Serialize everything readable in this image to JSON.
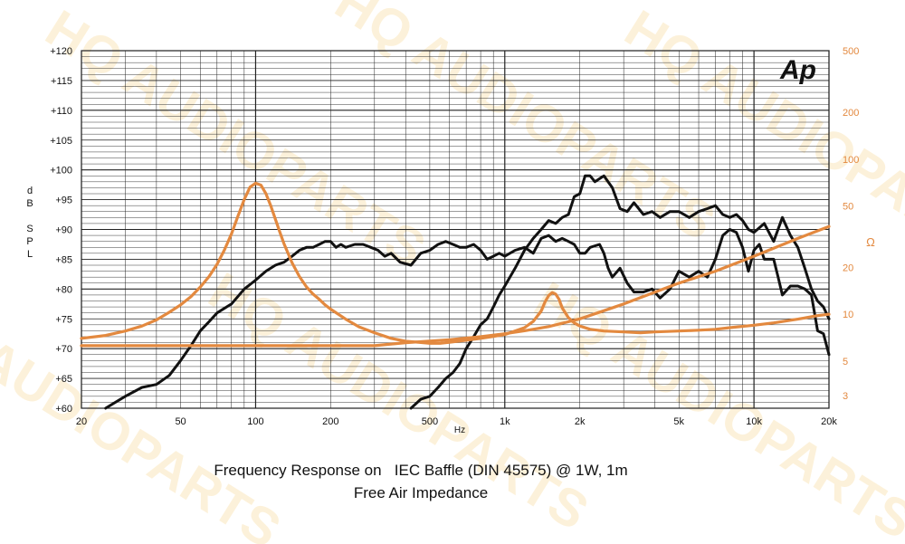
{
  "chart_data": {
    "type": "line",
    "x_scale": "log",
    "xlabel": "Hz",
    "xlim": [
      20,
      20000
    ],
    "x_ticks": [
      {
        "v": 20,
        "label": "20"
      },
      {
        "v": 50,
        "label": "50"
      },
      {
        "v": 100,
        "label": "100"
      },
      {
        "v": 200,
        "label": "200"
      },
      {
        "v": 500,
        "label": "500"
      },
      {
        "v": 1000,
        "label": "1k"
      },
      {
        "v": 2000,
        "label": "2k"
      },
      {
        "v": 5000,
        "label": "5k"
      },
      {
        "v": 10000,
        "label": "10k"
      },
      {
        "v": 20000,
        "label": "20k"
      }
    ],
    "ylabel_left": [
      "d",
      "B",
      "",
      "S",
      "P",
      "L"
    ],
    "ylim_left": [
      60,
      120
    ],
    "y_ticks_left": [
      "+60",
      "+65",
      "+70",
      "+75",
      "+80",
      "+85",
      "+90",
      "+95",
      "+100",
      "+105",
      "+110",
      "+115",
      "+120"
    ],
    "y_scale_right": "log",
    "ylabel_right": "Ω",
    "ylim_right": [
      2.48,
      500
    ],
    "y_ticks_right": [
      {
        "v": 3,
        "label": "3"
      },
      {
        "v": 5,
        "label": "5"
      },
      {
        "v": 10,
        "label": "10"
      },
      {
        "v": 20,
        "label": "20"
      },
      {
        "v": 50,
        "label": "50"
      },
      {
        "v": 100,
        "label": "100"
      },
      {
        "v": 200,
        "label": "200"
      },
      {
        "v": 500,
        "label": "500"
      }
    ],
    "grid": true,
    "logo_text": "Ap",
    "watermark_text": "HQ AUDIOPARTS",
    "series": [
      {
        "axis": "left",
        "color": "#111111",
        "points": [
          [
            25,
            60
          ],
          [
            30,
            62
          ],
          [
            35,
            63.5
          ],
          [
            40,
            64
          ],
          [
            45,
            65.5
          ],
          [
            50,
            68
          ],
          [
            55,
            70.5
          ],
          [
            60,
            73
          ],
          [
            65,
            74.5
          ],
          [
            70,
            76
          ],
          [
            80,
            77.5
          ],
          [
            90,
            80
          ],
          [
            100,
            81.5
          ],
          [
            110,
            83
          ],
          [
            120,
            84
          ],
          [
            130,
            84.5
          ],
          [
            140,
            85.5
          ],
          [
            150,
            86.5
          ],
          [
            160,
            87
          ],
          [
            170,
            87
          ],
          [
            180,
            87.5
          ],
          [
            190,
            88
          ],
          [
            200,
            88
          ],
          [
            210,
            87
          ],
          [
            220,
            87.5
          ],
          [
            230,
            87
          ],
          [
            250,
            87.5
          ],
          [
            270,
            87.5
          ],
          [
            290,
            87
          ],
          [
            310,
            86.5
          ],
          [
            330,
            85.5
          ],
          [
            350,
            86
          ],
          [
            380,
            84.5
          ],
          [
            420,
            84
          ],
          [
            460,
            86
          ],
          [
            500,
            86.5
          ],
          [
            540,
            87.5
          ],
          [
            580,
            88
          ],
          [
            620,
            87.5
          ],
          [
            660,
            87
          ],
          [
            700,
            87
          ],
          [
            750,
            87.5
          ],
          [
            800,
            86.5
          ],
          [
            850,
            85
          ],
          [
            900,
            85.5
          ],
          [
            950,
            86
          ],
          [
            1000,
            85.5
          ],
          [
            1100,
            86.5
          ],
          [
            1200,
            87
          ],
          [
            1300,
            86
          ],
          [
            1400,
            88.5
          ],
          [
            1500,
            89
          ],
          [
            1600,
            88
          ],
          [
            1700,
            88.5
          ],
          [
            1800,
            88
          ],
          [
            1900,
            87.5
          ],
          [
            2000,
            86
          ],
          [
            2100,
            86
          ],
          [
            2200,
            87
          ],
          [
            2400,
            87.5
          ],
          [
            2500,
            86
          ],
          [
            2600,
            83.5
          ],
          [
            2700,
            82
          ],
          [
            2900,
            83.5
          ],
          [
            3100,
            81
          ],
          [
            3300,
            79.5
          ],
          [
            3600,
            79.5
          ],
          [
            3900,
            80
          ],
          [
            4200,
            78.5
          ],
          [
            4600,
            80
          ],
          [
            5000,
            83
          ],
          [
            5500,
            82
          ],
          [
            6000,
            83
          ],
          [
            6500,
            82
          ],
          [
            7000,
            85
          ],
          [
            7500,
            89
          ],
          [
            8000,
            90
          ],
          [
            8500,
            89.5
          ],
          [
            9000,
            87
          ],
          [
            9500,
            83
          ],
          [
            10000,
            86.5
          ],
          [
            10500,
            87.5
          ],
          [
            11000,
            85
          ],
          [
            12000,
            85
          ],
          [
            12500,
            82
          ],
          [
            13000,
            79
          ],
          [
            14000,
            80.5
          ],
          [
            15000,
            80.5
          ],
          [
            16000,
            80
          ],
          [
            17000,
            79
          ],
          [
            18000,
            73
          ],
          [
            19000,
            72.5
          ],
          [
            20000,
            69
          ]
        ]
      },
      {
        "axis": "left",
        "color": "#111111",
        "points": [
          [
            420,
            60
          ],
          [
            460,
            61.5
          ],
          [
            500,
            62
          ],
          [
            540,
            63.5
          ],
          [
            580,
            65
          ],
          [
            620,
            66
          ],
          [
            660,
            67.5
          ],
          [
            700,
            70
          ],
          [
            750,
            72
          ],
          [
            800,
            74
          ],
          [
            850,
            75
          ],
          [
            900,
            77
          ],
          [
            950,
            79
          ],
          [
            1000,
            80.5
          ],
          [
            1100,
            83.5
          ],
          [
            1200,
            86.5
          ],
          [
            1300,
            88.5
          ],
          [
            1400,
            90
          ],
          [
            1500,
            91.5
          ],
          [
            1600,
            91
          ],
          [
            1700,
            92
          ],
          [
            1800,
            92.5
          ],
          [
            1900,
            95.5
          ],
          [
            2000,
            96
          ],
          [
            2100,
            99
          ],
          [
            2200,
            99
          ],
          [
            2300,
            98
          ],
          [
            2500,
            99
          ],
          [
            2700,
            97
          ],
          [
            2900,
            93.5
          ],
          [
            3100,
            93
          ],
          [
            3300,
            94.5
          ],
          [
            3600,
            92.5
          ],
          [
            3900,
            93
          ],
          [
            4200,
            92
          ],
          [
            4600,
            93
          ],
          [
            5000,
            93
          ],
          [
            5500,
            92
          ],
          [
            6000,
            93
          ],
          [
            6500,
            93.5
          ],
          [
            7000,
            94
          ],
          [
            7500,
            92.5
          ],
          [
            8000,
            92
          ],
          [
            8500,
            92.5
          ],
          [
            9000,
            91.5
          ],
          [
            9500,
            90
          ],
          [
            10000,
            89.5
          ],
          [
            11000,
            91
          ],
          [
            12000,
            88
          ],
          [
            13000,
            92
          ],
          [
            14000,
            89
          ],
          [
            15000,
            87
          ],
          [
            16000,
            83.5
          ],
          [
            17000,
            80
          ],
          [
            18000,
            78
          ],
          [
            19000,
            77
          ],
          [
            20000,
            75
          ]
        ]
      },
      {
        "axis": "right",
        "color": "#e3893f",
        "points": [
          [
            20,
            7
          ],
          [
            25,
            7.3
          ],
          [
            30,
            7.8
          ],
          [
            35,
            8.4
          ],
          [
            40,
            9.2
          ],
          [
            45,
            10.3
          ],
          [
            50,
            11.5
          ],
          [
            55,
            13
          ],
          [
            60,
            15
          ],
          [
            65,
            17.5
          ],
          [
            70,
            21
          ],
          [
            75,
            26
          ],
          [
            80,
            33
          ],
          [
            85,
            43
          ],
          [
            90,
            55
          ],
          [
            95,
            66
          ],
          [
            100,
            70
          ],
          [
            105,
            68
          ],
          [
            110,
            60
          ],
          [
            115,
            50
          ],
          [
            120,
            41
          ],
          [
            125,
            34
          ],
          [
            130,
            28.5
          ],
          [
            140,
            21.5
          ],
          [
            150,
            17.5
          ],
          [
            160,
            15
          ],
          [
            170,
            13.5
          ],
          [
            180,
            12.5
          ],
          [
            190,
            11.5
          ],
          [
            200,
            10.8
          ],
          [
            230,
            9.3
          ],
          [
            260,
            8.3
          ],
          [
            300,
            7.6
          ],
          [
            350,
            7
          ],
          [
            400,
            6.7
          ],
          [
            450,
            6.6
          ],
          [
            500,
            6.5
          ],
          [
            550,
            6.5
          ],
          [
            600,
            6.6
          ],
          [
            700,
            6.8
          ],
          [
            800,
            7
          ],
          [
            900,
            7.2
          ],
          [
            1000,
            7.4
          ],
          [
            1100,
            7.8
          ],
          [
            1200,
            8.2
          ],
          [
            1300,
            9
          ],
          [
            1400,
            10.5
          ],
          [
            1450,
            12
          ],
          [
            1500,
            13.2
          ],
          [
            1550,
            13.8
          ],
          [
            1600,
            13.5
          ],
          [
            1650,
            12.5
          ],
          [
            1700,
            11
          ],
          [
            1800,
            9.5
          ],
          [
            1900,
            8.8
          ],
          [
            2000,
            8.4
          ],
          [
            2200,
            8
          ],
          [
            2500,
            7.8
          ],
          [
            3000,
            7.7
          ],
          [
            3500,
            7.6
          ],
          [
            4000,
            7.7
          ],
          [
            5000,
            7.8
          ],
          [
            6000,
            7.9
          ],
          [
            7000,
            8
          ],
          [
            8000,
            8.2
          ],
          [
            10000,
            8.5
          ],
          [
            12000,
            8.8
          ],
          [
            15000,
            9.3
          ],
          [
            18000,
            9.8
          ],
          [
            20000,
            10
          ]
        ]
      },
      {
        "axis": "left",
        "color": "#e3893f",
        "points": [
          [
            20,
            70.5
          ],
          [
            50,
            70.5
          ],
          [
            100,
            70.5
          ],
          [
            200,
            70.5
          ],
          [
            300,
            70.5
          ],
          [
            400,
            71
          ],
          [
            600,
            71.5
          ],
          [
            800,
            72
          ],
          [
            1000,
            72.5
          ],
          [
            1200,
            73
          ],
          [
            1500,
            73.7
          ],
          [
            2000,
            75
          ],
          [
            3000,
            77.5
          ],
          [
            5000,
            81
          ],
          [
            7000,
            83
          ],
          [
            10000,
            85.5
          ],
          [
            15000,
            88.5
          ],
          [
            20000,
            90.5
          ]
        ]
      }
    ]
  },
  "caption": {
    "line1": "Frequency Response on   IEC Baffle (DIN 45575) @ 1W, 1m",
    "line2": "Free Air Impedance"
  }
}
